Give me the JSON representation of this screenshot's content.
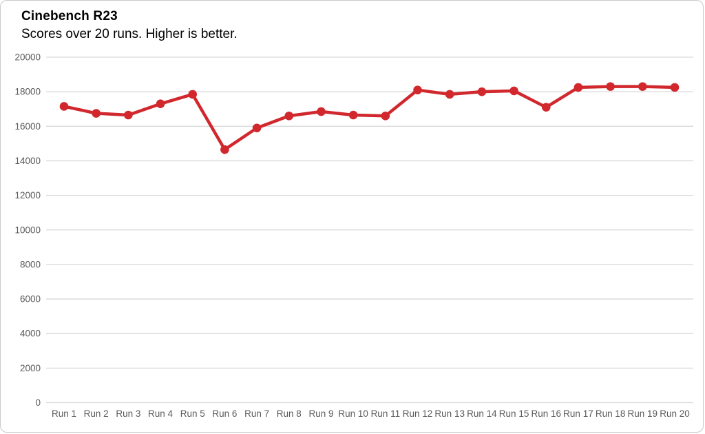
{
  "header": {
    "title": "Cinebench R23",
    "subtitle": "Scores over 20 runs. Higher is better."
  },
  "chart_data": {
    "type": "line",
    "title": "Cinebench R23",
    "subtitle": "Scores over 20 runs. Higher is better.",
    "categories": [
      "Run 1",
      "Run 2",
      "Run 3",
      "Run 4",
      "Run 5",
      "Run 6",
      "Run 7",
      "Run 8",
      "Run 9",
      "Run 10",
      "Run 11",
      "Run 12",
      "Run 13",
      "Run 14",
      "Run 15",
      "Run 16",
      "Run 17",
      "Run 18",
      "Run 19",
      "Run 20"
    ],
    "series": [
      {
        "name": "Cinebench R23 score",
        "values": [
          17150,
          16750,
          16650,
          17300,
          17850,
          14650,
          15900,
          16600,
          16850,
          16650,
          16600,
          18100,
          17850,
          18000,
          18050,
          17100,
          18250,
          18300,
          18300,
          18250
        ]
      }
    ],
    "xlabel": "",
    "ylabel": "",
    "ylim": [
      0,
      20000
    ],
    "yticks": [
      0,
      2000,
      4000,
      6000,
      8000,
      10000,
      12000,
      14000,
      16000,
      18000,
      20000
    ],
    "grid": true,
    "legend": false,
    "colors": {
      "line": "#d1282e",
      "marker": "#d1282e",
      "gridline": "#d9d9d9",
      "tick_text": "#595959",
      "card_border": "#c9c9c9",
      "background": "#ffffff"
    }
  }
}
